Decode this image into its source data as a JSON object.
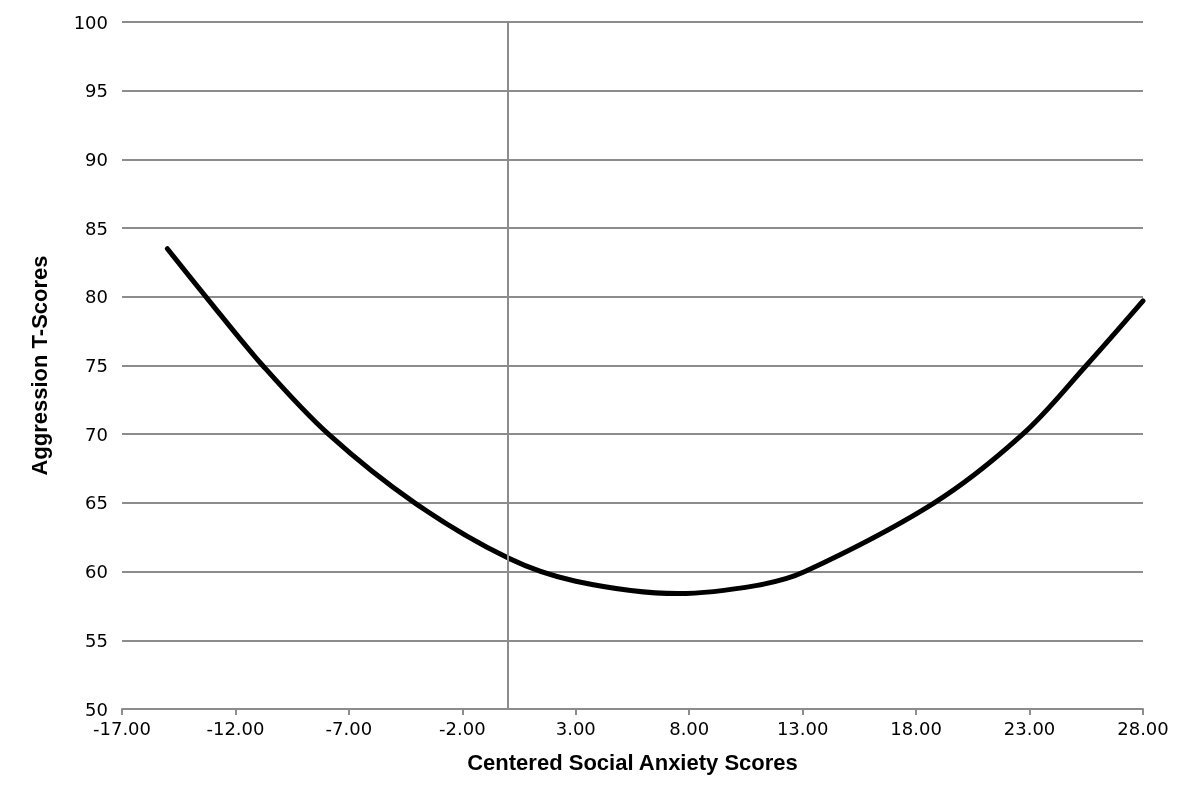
{
  "chart_data": {
    "type": "line",
    "xlabel": "Centered Social Anxiety Scores",
    "ylabel": "Aggression T-Scores",
    "series": [
      {
        "color": "#000000",
        "x": [
          -15,
          -13.3,
          -10.8,
          -7.9,
          -4.1,
          0,
          3,
          7.5,
          11,
          13.1,
          18.8,
          22.7,
          25.5,
          28
        ],
        "values": [
          83.5,
          80,
          75,
          70,
          65,
          61,
          59.3,
          58.4,
          59,
          60,
          65,
          70,
          75,
          79.7
        ]
      }
    ],
    "xlim": [
      -17,
      28
    ],
    "xticks": [
      {
        "value": -17,
        "label": "-17.00"
      },
      {
        "value": -12,
        "label": "-12.00"
      },
      {
        "value": -7,
        "label": "-7.00"
      },
      {
        "value": -2,
        "label": "-2.00"
      },
      {
        "value": 3,
        "label": "3.00"
      },
      {
        "value": 8,
        "label": "8.00"
      },
      {
        "value": 13,
        "label": "13.00"
      },
      {
        "value": 18,
        "label": "18.00"
      },
      {
        "value": 23,
        "label": "23.00"
      },
      {
        "value": 28,
        "label": "28.00"
      }
    ],
    "ylim": [
      50,
      100
    ],
    "yticks": [
      50,
      55,
      60,
      65,
      70,
      75,
      80,
      85,
      90,
      95,
      100
    ],
    "ref_lines": [
      {
        "axis": "x",
        "value": 0,
        "color": "#8c8c8c"
      }
    ],
    "grid": "y",
    "marker": "none",
    "line_style": "solid"
  }
}
